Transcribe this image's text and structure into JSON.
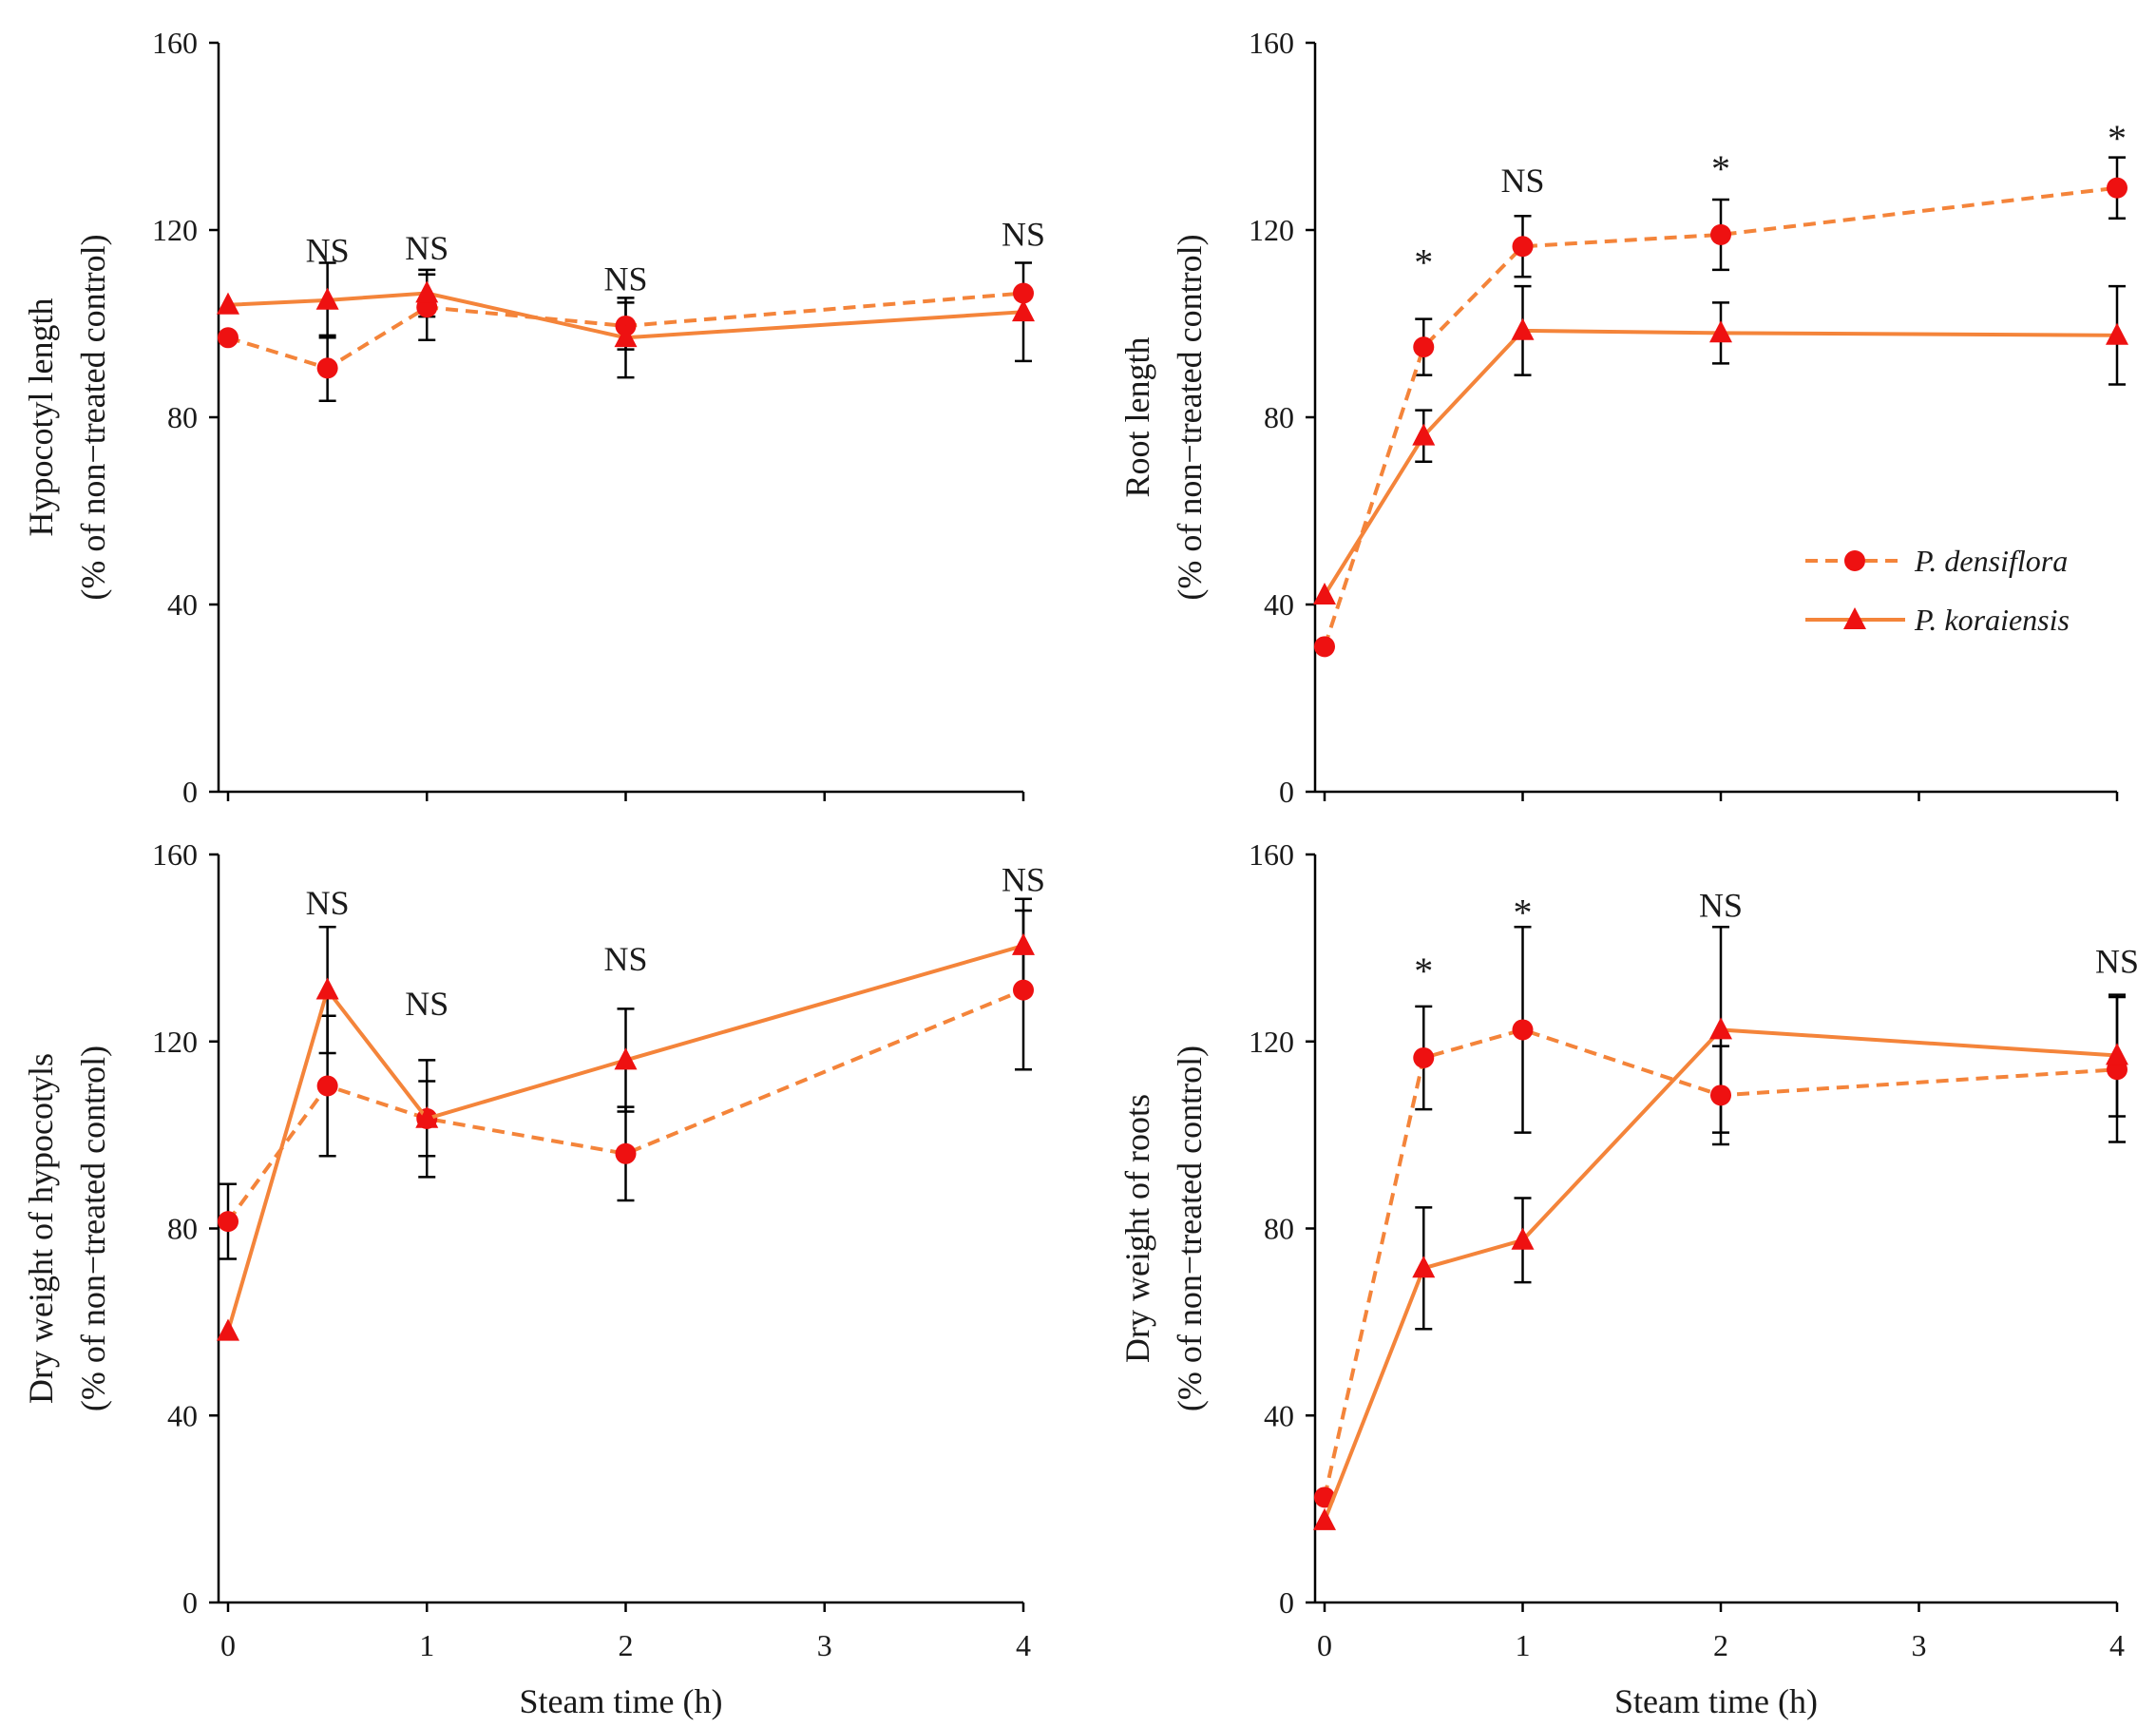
{
  "colors": {
    "series": "#f4843a",
    "marker": "#ee1111",
    "axis": "#000000",
    "error": "#000000"
  },
  "legend": {
    "series1": "P. densiflora",
    "series2": "P. koraiensis"
  },
  "chart_data": [
    {
      "id": "hypocotyl-length",
      "type": "line",
      "ylabel_line1": "Hypocotyl length",
      "ylabel_line2": "(% of non−treated control)",
      "xlabel": "",
      "ylim": [
        0,
        160
      ],
      "yticks": [
        "0",
        "40",
        "80",
        "120",
        "160"
      ],
      "xlim": [
        0,
        4
      ],
      "xticks": [],
      "series": [
        {
          "name": "P. densiflora",
          "style": "dashed",
          "marker": "circle",
          "x": [
            0,
            0.5,
            1,
            2,
            4
          ],
          "y": [
            97,
            90.5,
            103.5,
            99.5,
            106.5
          ],
          "err": [
            0,
            7,
            7,
            5,
            0
          ]
        },
        {
          "name": "P. koraiensis",
          "style": "solid",
          "marker": "triangle",
          "x": [
            0,
            0.5,
            1,
            2,
            4
          ],
          "y": [
            104,
            105,
            106.5,
            97,
            102.5
          ],
          "err": [
            0,
            8,
            5,
            8.5,
            10.5
          ]
        }
      ],
      "annotations": [
        {
          "x": 0.5,
          "y": 116,
          "text": "NS"
        },
        {
          "x": 1,
          "y": 116.5,
          "text": "NS"
        },
        {
          "x": 2,
          "y": 110,
          "text": "NS"
        },
        {
          "x": 4,
          "y": 119.5,
          "text": "NS"
        }
      ]
    },
    {
      "id": "root-length",
      "type": "line",
      "ylabel_line1": "Root length",
      "ylabel_line2": "(% of non−treated control)",
      "xlabel": "",
      "ylim": [
        0,
        160
      ],
      "yticks": [
        "0",
        "40",
        "80",
        "120",
        "160"
      ],
      "xlim": [
        0,
        4
      ],
      "xticks": [],
      "series": [
        {
          "name": "P. densiflora",
          "style": "dashed",
          "marker": "circle",
          "x": [
            0,
            0.5,
            1,
            2,
            4
          ],
          "y": [
            31,
            95,
            116.5,
            119,
            129
          ],
          "err": [
            0,
            6,
            6.5,
            7.5,
            6.5
          ]
        },
        {
          "name": "P. koraiensis",
          "style": "solid",
          "marker": "triangle",
          "x": [
            0,
            0.5,
            1,
            2,
            4
          ],
          "y": [
            42,
            76,
            98.5,
            98,
            97.5
          ],
          "err": [
            0,
            5.5,
            9.5,
            6.5,
            10.5
          ]
        }
      ],
      "annotations": [
        {
          "x": 0.5,
          "y": 114,
          "text": "*"
        },
        {
          "x": 1,
          "y": 131,
          "text": "NS"
        },
        {
          "x": 2,
          "y": 134,
          "text": "*"
        },
        {
          "x": 4,
          "y": 140.5,
          "text": "*"
        }
      ],
      "legend_position": "right-middle"
    },
    {
      "id": "dry-weight-hypocotyls",
      "type": "line",
      "ylabel_line1": "Dry weight of hypocotyls",
      "ylabel_line2": "(% of non−treated control)",
      "xlabel": "Steam time (h)",
      "ylim": [
        0,
        160
      ],
      "yticks": [
        "0",
        "40",
        "80",
        "120",
        "160"
      ],
      "xlim": [
        0,
        4
      ],
      "xticks": [
        "0",
        "1",
        "2",
        "3",
        "4"
      ],
      "series": [
        {
          "name": "P. densiflora",
          "style": "dashed",
          "marker": "circle",
          "x": [
            0,
            0.5,
            1,
            2,
            4
          ],
          "y": [
            81.5,
            110.5,
            103.5,
            96,
            131
          ],
          "err": [
            8,
            15,
            8,
            10,
            17
          ]
        },
        {
          "name": "P. koraiensis",
          "style": "solid",
          "marker": "triangle",
          "x": [
            0,
            0.5,
            1,
            2,
            4
          ],
          "y": [
            58,
            131,
            103.5,
            116,
            140.5
          ],
          "err": [
            0,
            13.5,
            12.5,
            11,
            10
          ]
        }
      ],
      "annotations": [
        {
          "x": 0.5,
          "y": 150,
          "text": "NS"
        },
        {
          "x": 1,
          "y": 128.5,
          "text": "NS"
        },
        {
          "x": 2,
          "y": 138,
          "text": "NS"
        },
        {
          "x": 4,
          "y": 155,
          "text": "NS"
        }
      ]
    },
    {
      "id": "dry-weight-roots",
      "type": "line",
      "ylabel_line1": "Dry weight of roots",
      "ylabel_line2": "(% of non−treated control)",
      "xlabel": "Steam time (h)",
      "ylim": [
        0,
        160
      ],
      "yticks": [
        "0",
        "40",
        "80",
        "120",
        "160"
      ],
      "xlim": [
        0,
        4
      ],
      "xticks": [
        "0",
        "1",
        "2",
        "3",
        "4"
      ],
      "series": [
        {
          "name": "P. densiflora",
          "style": "dashed",
          "marker": "circle",
          "x": [
            0,
            0.5,
            1,
            2,
            4
          ],
          "y": [
            22.5,
            116.5,
            122.5,
            108.5,
            114
          ],
          "err": [
            0,
            11,
            22,
            10.5,
            15.5
          ]
        },
        {
          "name": "P. koraiensis",
          "style": "solid",
          "marker": "triangle",
          "x": [
            0,
            0.5,
            1,
            2,
            4
          ],
          "y": [
            17.5,
            71.5,
            77.5,
            122.5,
            117
          ],
          "err": [
            0,
            13,
            9,
            22,
            13
          ]
        }
      ],
      "annotations": [
        {
          "x": 0.5,
          "y": 136,
          "text": "*"
        },
        {
          "x": 1,
          "y": 148.5,
          "text": "*"
        },
        {
          "x": 2,
          "y": 149.5,
          "text": "NS"
        },
        {
          "x": 4,
          "y": 137.5,
          "text": "NS"
        }
      ]
    }
  ]
}
